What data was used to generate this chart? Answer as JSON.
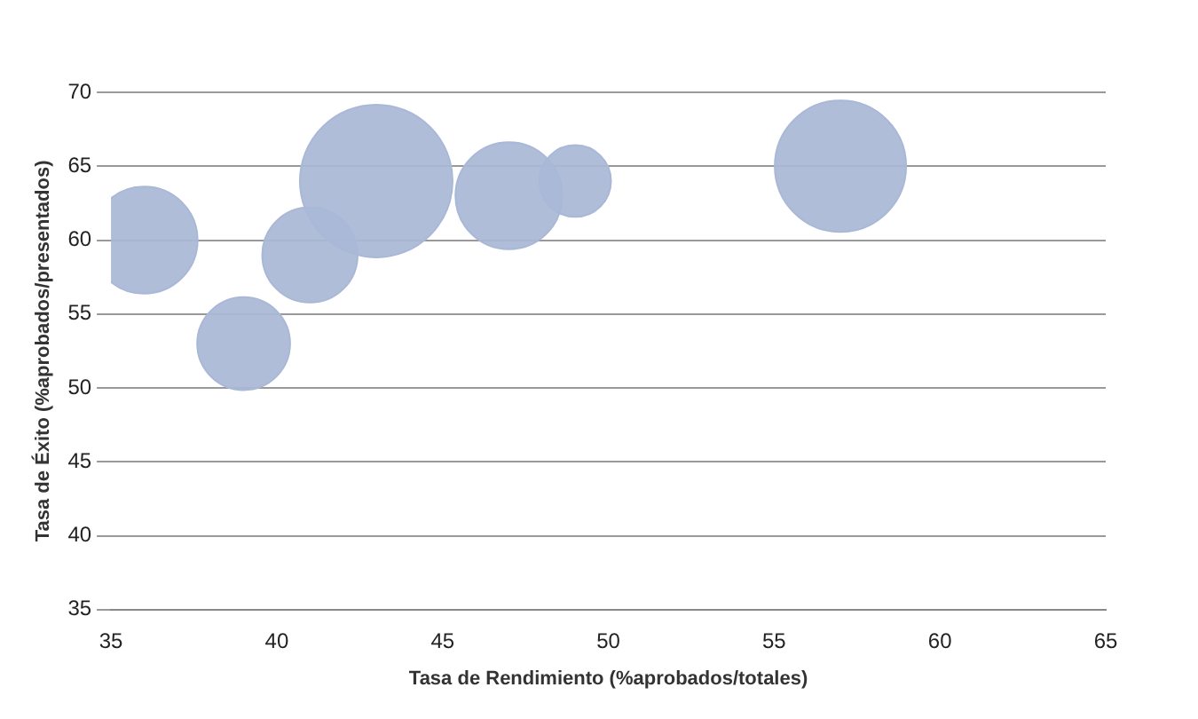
{
  "chart_data": {
    "type": "bubble",
    "xlabel": "Tasa de Rendimiento (%aprobados/totales)",
    "ylabel": "Tasa de Éxito (%aprobados/presentados)",
    "x": [
      36,
      39,
      41,
      43,
      47,
      49,
      57
    ],
    "values": [
      60,
      53,
      59,
      64,
      63,
      64,
      65
    ],
    "sizes": [
      0.49,
      0.37,
      0.39,
      1,
      0.49,
      0.22,
      0.74
    ],
    "color": "#a9b8d6",
    "xlim": [
      35,
      65
    ],
    "xticks": [
      35,
      40,
      45,
      50,
      55,
      60,
      65
    ],
    "ylim": [
      35,
      70
    ],
    "yticks": [
      35,
      40,
      45,
      50,
      55,
      60,
      65,
      70
    ],
    "grid": "y",
    "legend": false
  }
}
